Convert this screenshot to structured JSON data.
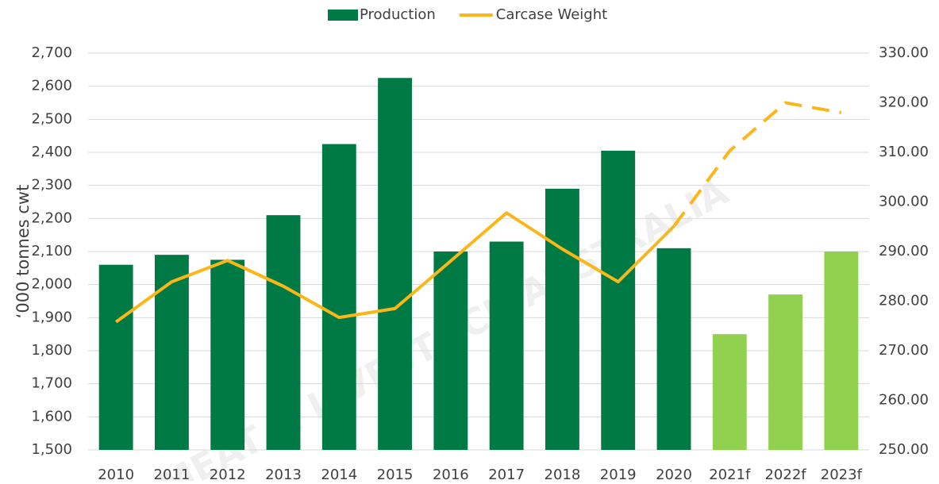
{
  "chart_data": {
    "type": "bar_line",
    "watermark": "MEAT & LIVESTOCK AUSTRALIA",
    "y_label": "‘000 tonnes cwt",
    "categories": [
      "2010",
      "2011",
      "2012",
      "2013",
      "2014",
      "2015",
      "2016",
      "2017",
      "2018",
      "2019",
      "2020",
      "2021f",
      "2022f",
      "2023f"
    ],
    "series": [
      {
        "name": "Production",
        "type": "bar",
        "color": "#007a45",
        "colors": [
          "#007a45",
          "#007a45",
          "#007a45",
          "#007a45",
          "#007a45",
          "#007a45",
          "#007a45",
          "#007a45",
          "#007a45",
          "#007a45",
          "#007a45",
          "#92d050",
          "#92d050",
          "#92d050"
        ],
        "values": [
          2060,
          2090,
          2075,
          2210,
          2425,
          2625,
          2100,
          2130,
          2290,
          2405,
          2110,
          1850,
          1970,
          2100
        ]
      },
      {
        "name": "Carcase Weight",
        "type": "line",
        "axis": "y2",
        "color": "#fbb619",
        "dashed_from": 10,
        "values": [
          275.8,
          283.9,
          288.2,
          283.0,
          276.7,
          278.5,
          288.1,
          297.8,
          290.5,
          283.9,
          295.1,
          310.3,
          320.0,
          318.0
        ]
      }
    ],
    "ylim": [
      1500,
      2700
    ],
    "yticks": [
      {
        "value": 1500,
        "label": "1,500"
      },
      {
        "value": 1600,
        "label": "1,600"
      },
      {
        "value": 1700,
        "label": "1,700"
      },
      {
        "value": 1800,
        "label": "1,800"
      },
      {
        "value": 1900,
        "label": "1,900"
      },
      {
        "value": 2000,
        "label": "2,000"
      },
      {
        "value": 2100,
        "label": "2,100"
      },
      {
        "value": 2200,
        "label": "2,200"
      },
      {
        "value": 2300,
        "label": "2,300"
      },
      {
        "value": 2400,
        "label": "2,400"
      },
      {
        "value": 2500,
        "label": "2,500"
      },
      {
        "value": 2600,
        "label": "2,600"
      },
      {
        "value": 2700,
        "label": "2,700"
      }
    ],
    "y2lim": [
      250,
      330
    ],
    "y2ticks": [
      {
        "value": 250,
        "label": "250.00"
      },
      {
        "value": 260,
        "label": "260.00"
      },
      {
        "value": 270,
        "label": "270.00"
      },
      {
        "value": 280,
        "label": "280.00"
      },
      {
        "value": 290,
        "label": "290.00"
      },
      {
        "value": 300,
        "label": "300.00"
      },
      {
        "value": 310,
        "label": "310.00"
      },
      {
        "value": 320,
        "label": "320.00"
      },
      {
        "value": 330,
        "label": "330.00"
      }
    ],
    "grid": true,
    "legend": "top"
  }
}
